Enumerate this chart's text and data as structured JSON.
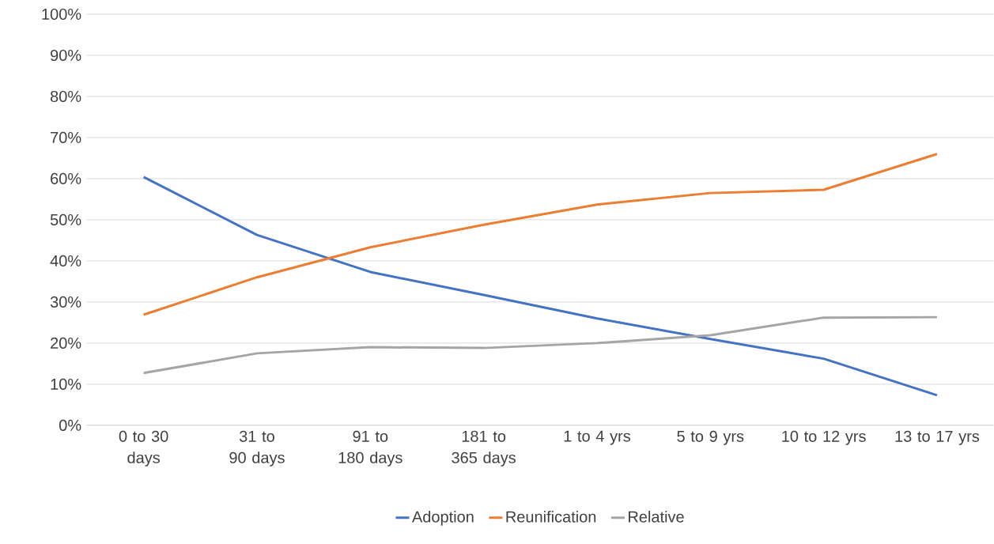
{
  "chart_data": {
    "type": "line",
    "categories": [
      "0 to 30 days",
      "31 to 90 days",
      "91 to 180 days",
      "181 to 365 days",
      "1 to 4 yrs",
      "5 to 9 yrs",
      "10 to 12 yrs",
      "13 to 17 yrs"
    ],
    "series": [
      {
        "name": "Adoption",
        "color": "#4472c4",
        "values": [
          60.4,
          46.3,
          37.3,
          31.7,
          26.0,
          21.0,
          16.2,
          7.3
        ]
      },
      {
        "name": "Reunification",
        "color": "#ed7d31",
        "values": [
          26.9,
          36.0,
          43.3,
          48.8,
          53.7,
          56.5,
          57.3,
          66.0
        ]
      },
      {
        "name": "Relative",
        "color": "#a5a5a5",
        "values": [
          12.7,
          17.5,
          19.0,
          18.8,
          20.0,
          21.9,
          26.2,
          26.3
        ]
      }
    ],
    "ylim": [
      0,
      100
    ],
    "yticks": [
      {
        "value": 0,
        "label": "0%"
      },
      {
        "value": 10,
        "label": "10%"
      },
      {
        "value": 20,
        "label": "20%"
      },
      {
        "value": 30,
        "label": "30%"
      },
      {
        "value": 40,
        "label": "40%"
      },
      {
        "value": 50,
        "label": "50%"
      },
      {
        "value": 60,
        "label": "60%"
      },
      {
        "value": 70,
        "label": "70%"
      },
      {
        "value": 80,
        "label": "80%"
      },
      {
        "value": 90,
        "label": "90%"
      },
      {
        "value": 100,
        "label": "100%"
      }
    ],
    "grid": "y",
    "legend": "bottom",
    "marker": "none",
    "line_style": "solid"
  }
}
